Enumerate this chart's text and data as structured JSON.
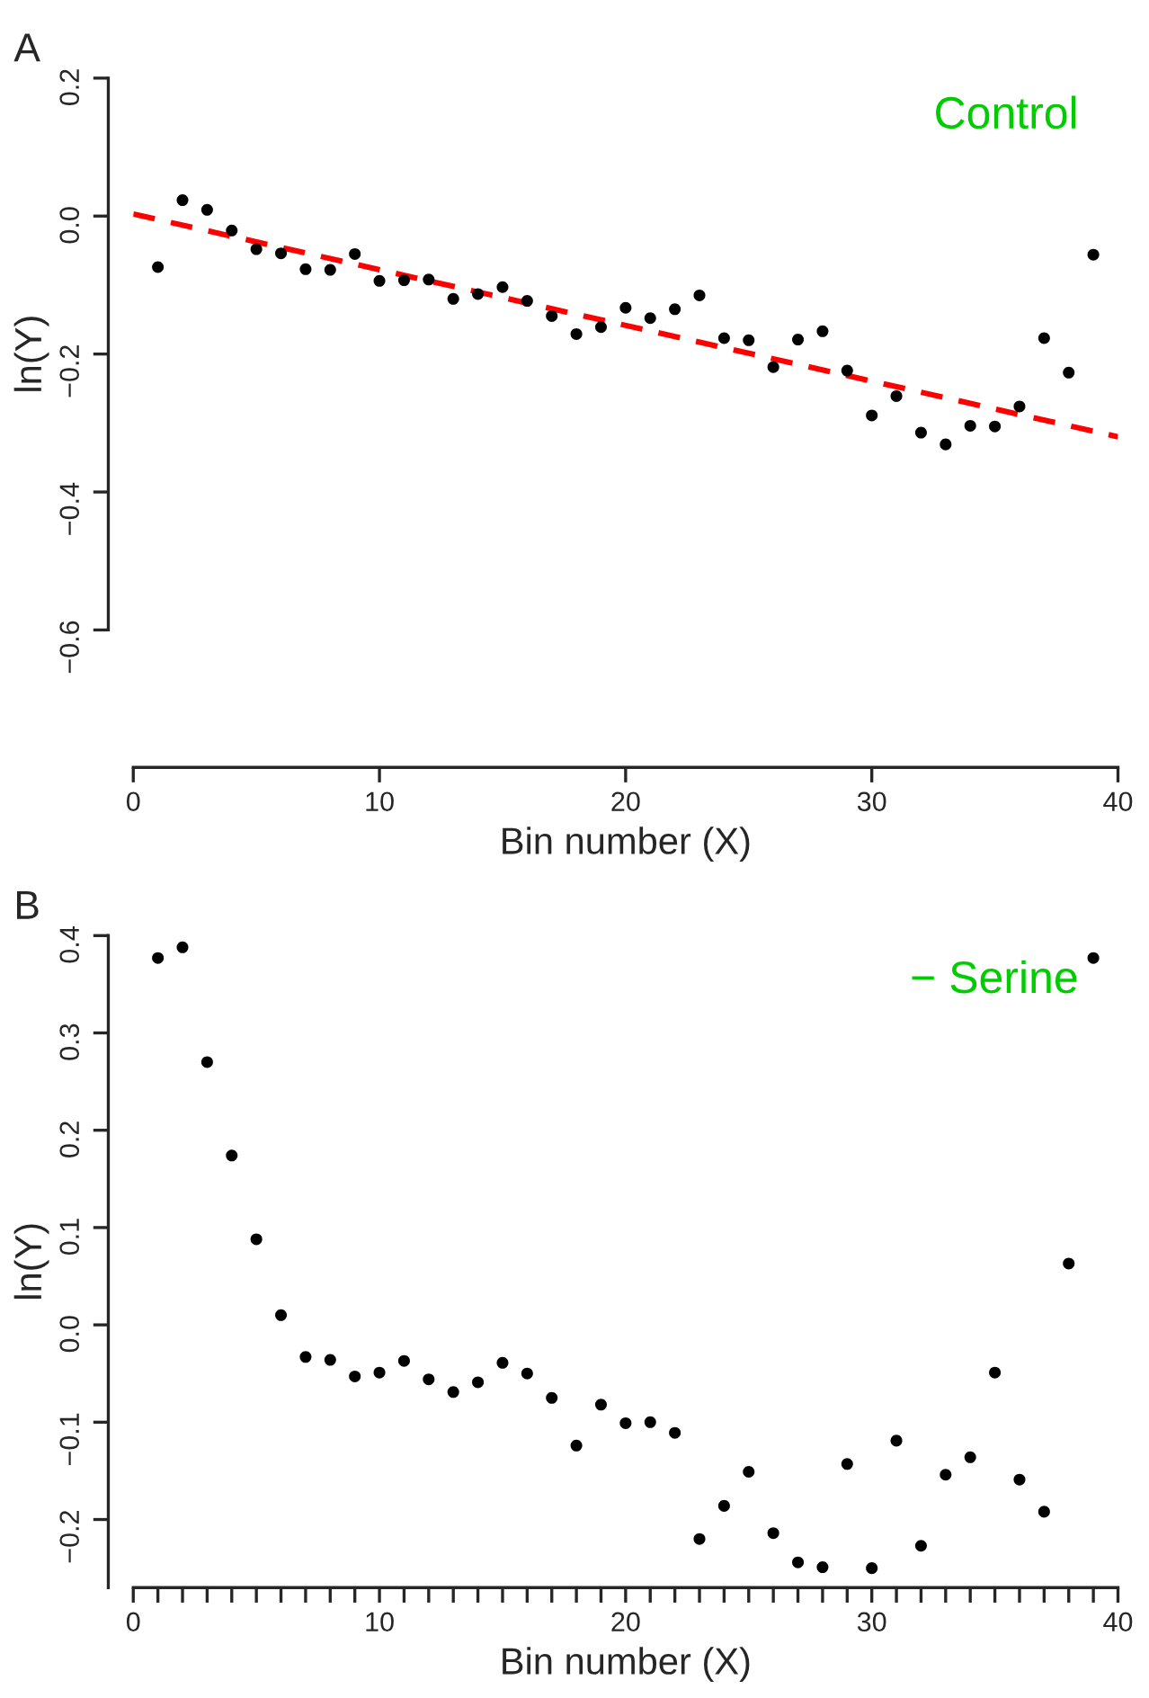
{
  "chart_data": [
    {
      "type": "scatter",
      "xlabel": "Bin number (X)",
      "ylabel": "ln(Y)",
      "xlim": [
        0,
        40
      ],
      "xticks": [
        0,
        10,
        20,
        30,
        40
      ],
      "ylim": [
        -0.6,
        0.2
      ],
      "yticks": [
        -0.6,
        -0.4,
        -0.2,
        {
          "value": 0,
          "label": "0.0"
        },
        0.2
      ],
      "grid": false,
      "legend": false,
      "annotations": [
        "A",
        "Control"
      ],
      "series": [
        {
          "color": "#000000",
          "marker": "circle",
          "x": [
            1,
            2,
            3,
            4,
            5,
            6,
            7,
            8,
            9,
            10,
            11,
            12,
            13,
            14,
            15,
            16,
            17,
            18,
            19,
            20,
            21,
            22,
            23,
            24,
            25,
            26,
            27,
            28,
            29,
            30,
            31,
            32,
            33,
            34,
            35,
            36,
            37,
            38,
            39
          ],
          "values": [
            -0.074,
            0.023,
            0.009,
            -0.021,
            -0.048,
            -0.054,
            -0.077,
            -0.078,
            -0.055,
            -0.094,
            -0.093,
            -0.092,
            -0.12,
            -0.113,
            -0.103,
            -0.123,
            -0.145,
            -0.171,
            -0.161,
            -0.133,
            -0.148,
            -0.135,
            -0.115,
            -0.177,
            -0.18,
            -0.219,
            -0.179,
            -0.167,
            -0.224,
            -0.289,
            -0.261,
            -0.314,
            -0.331,
            -0.304,
            -0.305,
            -0.276,
            -0.177,
            -0.227,
            -0.056
          ]
        },
        {
          "type": "line",
          "color": "#ff0000",
          "line_style": "dashed",
          "x": [
            0,
            40
          ],
          "values": [
            0.003,
            -0.32
          ]
        }
      ]
    },
    {
      "type": "scatter",
      "xlabel": "Bin number (X)",
      "ylabel": "ln(Y)",
      "xlim": [
        0,
        40
      ],
      "xticks": [
        0,
        {
          "value": 1,
          "label": null
        },
        {
          "value": 2,
          "label": null
        },
        {
          "value": 3,
          "label": null
        },
        {
          "value": 4,
          "label": null
        },
        {
          "value": 5,
          "label": null
        },
        {
          "value": 6,
          "label": null
        },
        {
          "value": 7,
          "label": null
        },
        {
          "value": 8,
          "label": null
        },
        {
          "value": 9,
          "label": null
        },
        10,
        {
          "value": 11,
          "label": null
        },
        {
          "value": 12,
          "label": null
        },
        {
          "value": 13,
          "label": null
        },
        {
          "value": 14,
          "label": null
        },
        {
          "value": 15,
          "label": null
        },
        {
          "value": 16,
          "label": null
        },
        {
          "value": 17,
          "label": null
        },
        {
          "value": 18,
          "label": null
        },
        {
          "value": 19,
          "label": null
        },
        20,
        {
          "value": 21,
          "label": null
        },
        {
          "value": 22,
          "label": null
        },
        {
          "value": 23,
          "label": null
        },
        {
          "value": 24,
          "label": null
        },
        {
          "value": 25,
          "label": null
        },
        {
          "value": 26,
          "label": null
        },
        {
          "value": 27,
          "label": null
        },
        {
          "value": 28,
          "label": null
        },
        {
          "value": 29,
          "label": null
        },
        30,
        {
          "value": 31,
          "label": null
        },
        {
          "value": 32,
          "label": null
        },
        {
          "value": 33,
          "label": null
        },
        {
          "value": 34,
          "label": null
        },
        {
          "value": 35,
          "label": null
        },
        {
          "value": 36,
          "label": null
        },
        {
          "value": 37,
          "label": null
        },
        {
          "value": 38,
          "label": null
        },
        {
          "value": 39,
          "label": null
        },
        40
      ],
      "ylim": [
        -0.27,
        0.4
      ],
      "yticks": [
        -0.2,
        -0.1,
        {
          "value": 0,
          "label": "0.0"
        },
        0.1,
        0.2,
        0.3,
        0.4
      ],
      "grid": false,
      "legend": false,
      "annotations": [
        "B",
        "− Serine"
      ],
      "series": [
        {
          "color": "#000000",
          "marker": "circle",
          "x": [
            1,
            2,
            3,
            4,
            5,
            6,
            7,
            8,
            9,
            10,
            11,
            12,
            13,
            14,
            15,
            16,
            17,
            18,
            19,
            20,
            21,
            22,
            23,
            24,
            25,
            26,
            27,
            28,
            29,
            30,
            31,
            32,
            33,
            34,
            35,
            36,
            37,
            38,
            39
          ],
          "values": [
            0.377,
            0.388,
            0.27,
            0.174,
            0.088,
            0.01,
            -0.033,
            -0.036,
            -0.053,
            -0.049,
            -0.037,
            -0.056,
            -0.069,
            -0.059,
            -0.039,
            -0.05,
            -0.075,
            -0.124,
            -0.082,
            -0.101,
            -0.1,
            -0.111,
            -0.22,
            -0.186,
            -0.151,
            -0.214,
            -0.244,
            -0.249,
            -0.143,
            -0.25,
            -0.119,
            -0.227,
            -0.154,
            -0.136,
            -0.049,
            -0.159,
            -0.192,
            0.063,
            0.377
          ]
        }
      ]
    }
  ]
}
